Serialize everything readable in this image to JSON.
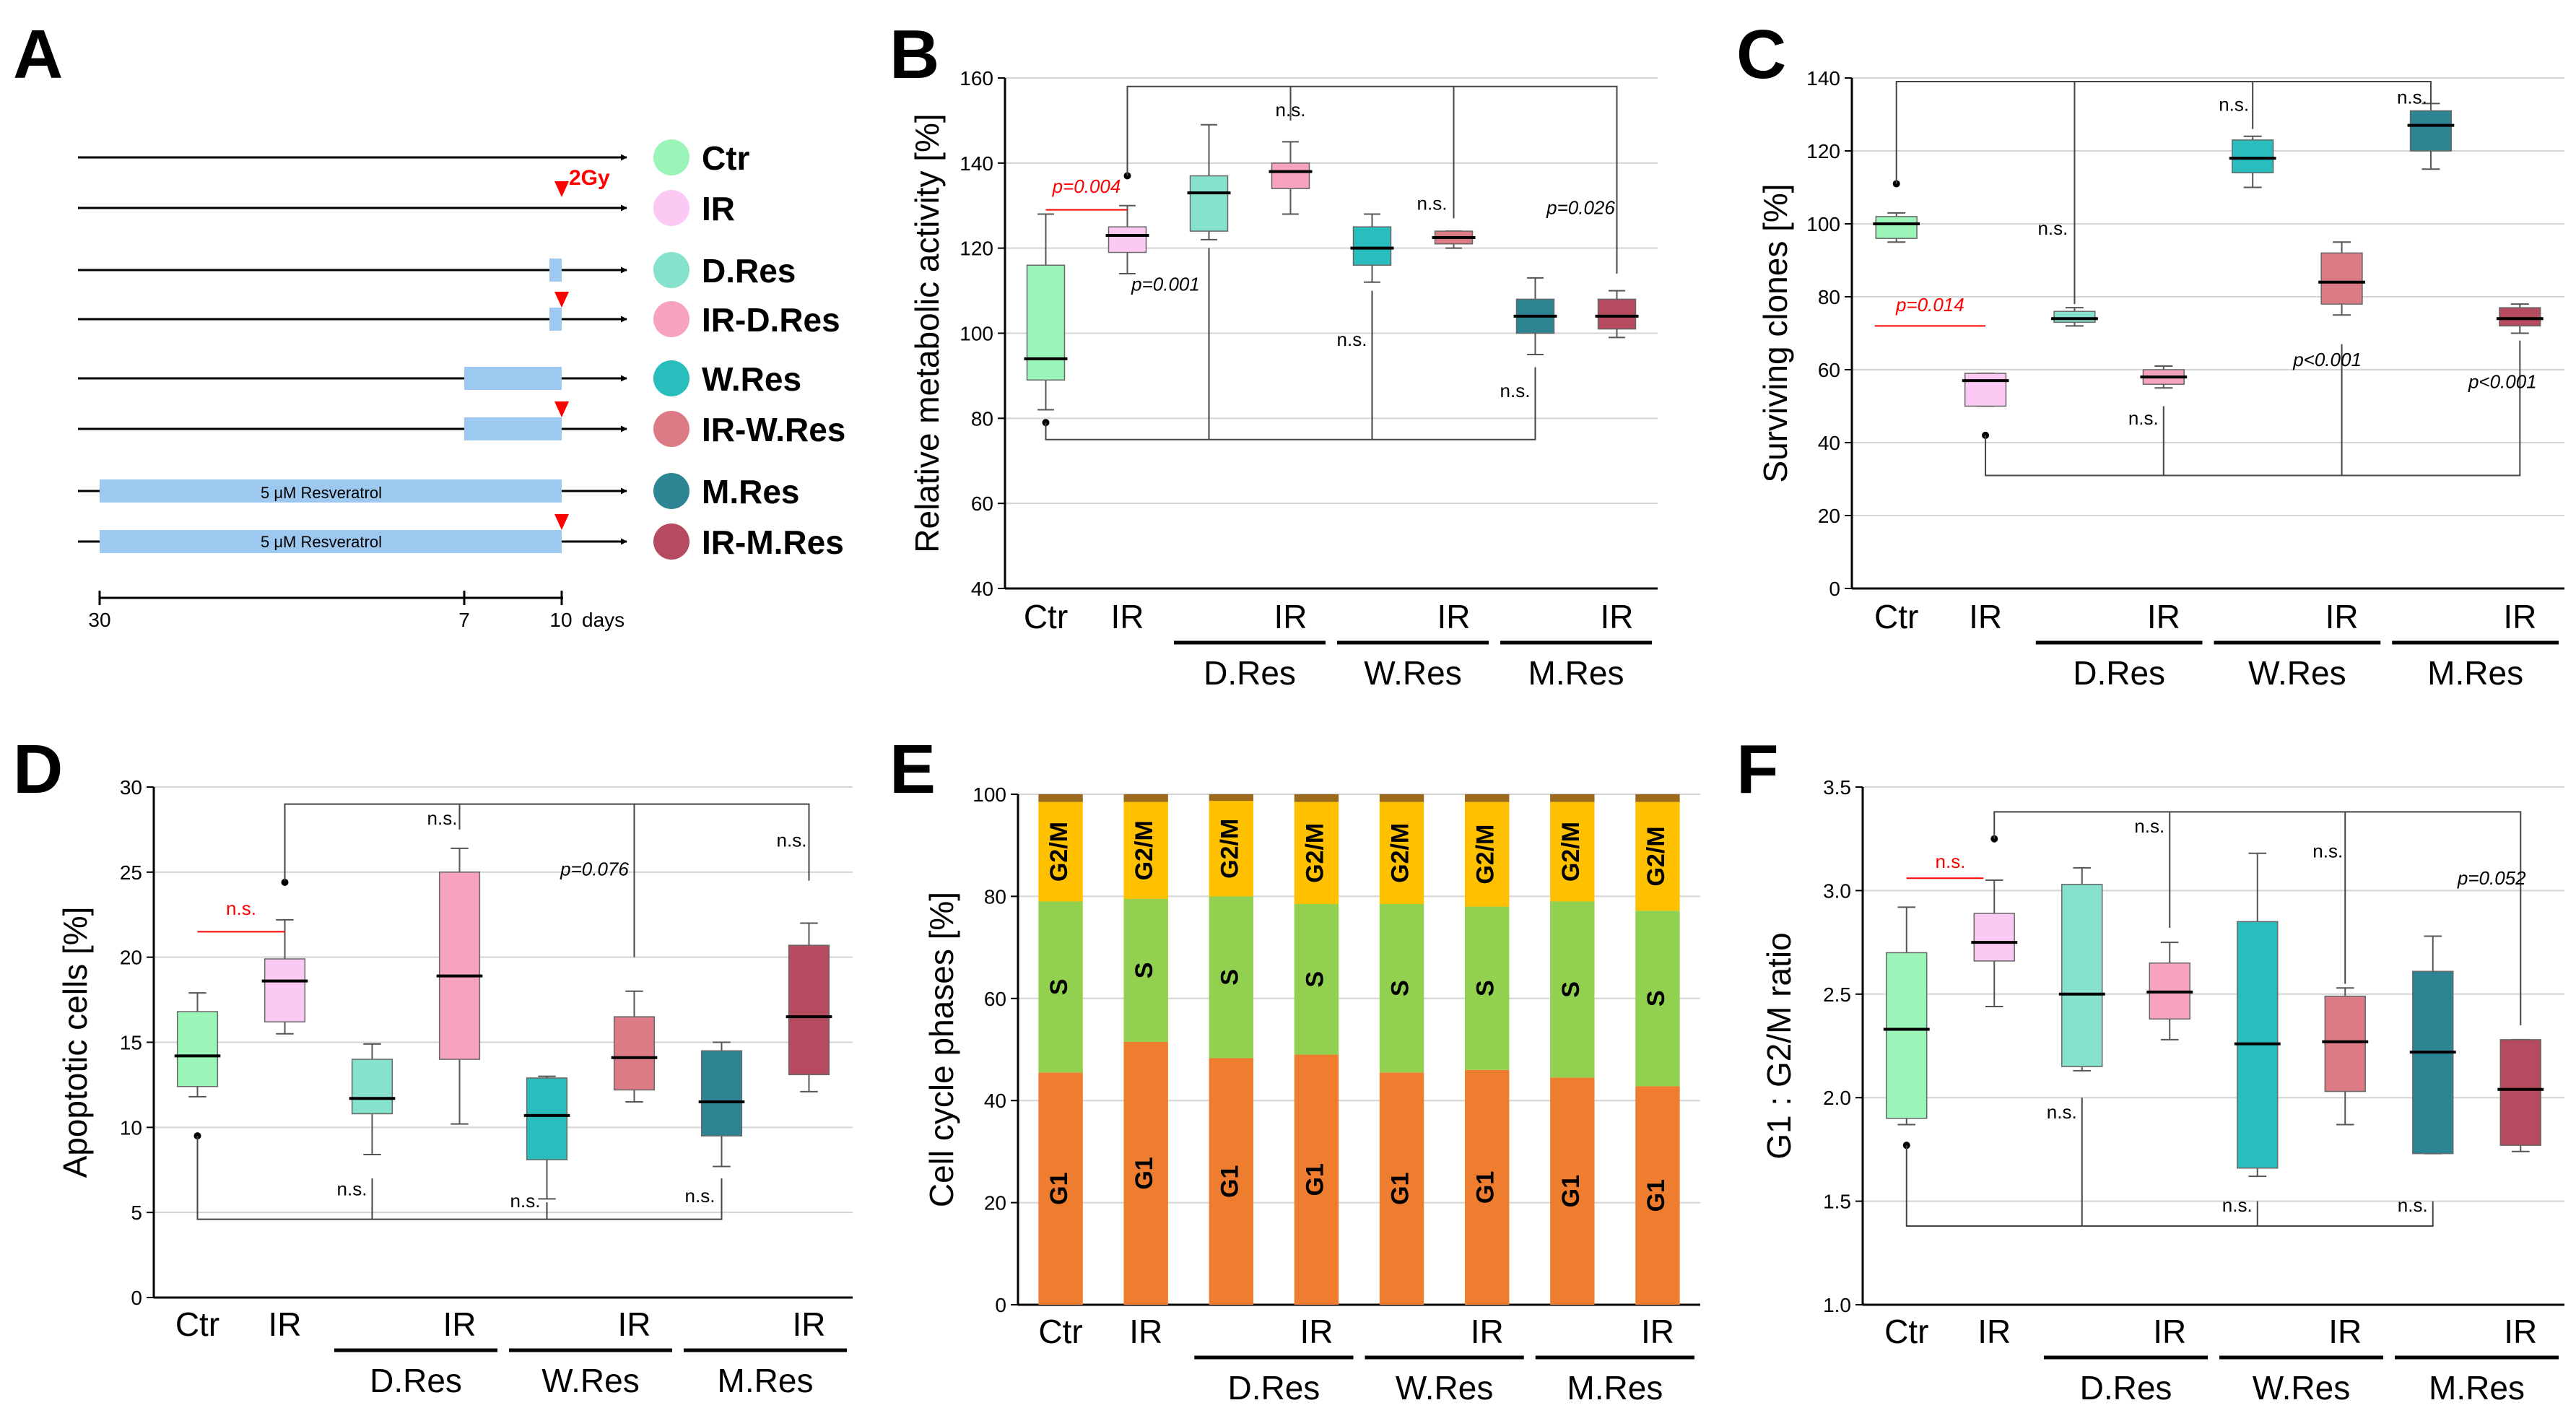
{
  "colors": {
    "Ctr": "#9cf5b8",
    "IR": "#fcc8f4",
    "D.Res": "#86e2cc",
    "IR-D.Res": "#f7a3bf",
    "W.Res": "#2abdbd",
    "IR-W.Res": "#dc7b86",
    "M.Res": "#2d8593",
    "IR-M.Res": "#b64b5f",
    "G1": "#ee7d30",
    "S": "#92d050",
    "G2M": "#ffc000",
    "top": "#9c6a1d",
    "resveratrol_bar": "#9dc9f0",
    "arrow_red": "#ff0000"
  },
  "panelA": {
    "letter": "A",
    "legend": [
      "Ctr",
      "IR",
      "D.Res",
      "IR-D.Res",
      "W.Res",
      "IR-W.Res",
      "M.Res",
      "IR-M.Res"
    ],
    "irradiation_label": "2Gy",
    "resveratrol_label": "5 μM Resveratrol",
    "time_ticks": [
      "30",
      "7",
      "10"
    ],
    "time_unit": "days"
  },
  "chart_data": [
    {
      "panel": "B",
      "type": "box",
      "ylabel": "Relative metabolic activity [%]",
      "ylim": [
        40,
        160
      ],
      "yticks": [
        40,
        60,
        80,
        100,
        120,
        140,
        160
      ],
      "xlabels": [
        "Ctr",
        "IR",
        "",
        "IR",
        "",
        "IR",
        "",
        "IR"
      ],
      "group_labels": [
        "D.Res",
        "W.Res",
        "M.Res"
      ],
      "boxes": [
        {
          "name": "Ctr",
          "whisker_low": 82,
          "q1": 89,
          "median": 94,
          "q3": 116,
          "whisker_high": 128,
          "outliers": [
            79
          ]
        },
        {
          "name": "IR",
          "whisker_low": 114,
          "q1": 119,
          "median": 123,
          "q3": 125,
          "whisker_high": 130,
          "outliers": [
            137
          ]
        },
        {
          "name": "D.Res",
          "whisker_low": 122,
          "q1": 124,
          "median": 133,
          "q3": 137,
          "whisker_high": 149,
          "outliers": []
        },
        {
          "name": "IR-D.Res",
          "whisker_low": 128,
          "q1": 134,
          "median": 138,
          "q3": 140,
          "whisker_high": 145,
          "outliers": []
        },
        {
          "name": "W.Res",
          "whisker_low": 112,
          "q1": 116,
          "median": 120,
          "q3": 125,
          "whisker_high": 128,
          "outliers": []
        },
        {
          "name": "IR-W.Res",
          "whisker_low": 120,
          "q1": 121,
          "median": 122.5,
          "q3": 124,
          "whisker_high": 124,
          "outliers": []
        },
        {
          "name": "M.Res",
          "whisker_low": 95,
          "q1": 100,
          "median": 104,
          "q3": 108,
          "whisker_high": 113,
          "outliers": []
        },
        {
          "name": "IR-M.Res",
          "whisker_low": 99,
          "q1": 101,
          "median": 104,
          "q3": 108,
          "whisker_high": 110,
          "outliers": []
        }
      ],
      "annotations": [
        "p=0.004",
        "p=0.001",
        "n.s.",
        "n.s.",
        "n.s.",
        "p=0.026",
        "n.s."
      ]
    },
    {
      "panel": "C",
      "type": "box",
      "ylabel": "Surviving clones [%]",
      "ylim": [
        0,
        140
      ],
      "yticks": [
        0,
        20,
        40,
        60,
        80,
        100,
        120,
        140
      ],
      "xlabels": [
        "Ctr",
        "IR",
        "",
        "IR",
        "",
        "IR",
        "",
        "IR"
      ],
      "group_labels": [
        "D.Res",
        "W.Res",
        "M.Res"
      ],
      "boxes": [
        {
          "name": "Ctr",
          "whisker_low": 95,
          "q1": 96,
          "median": 100,
          "q3": 102,
          "whisker_high": 103,
          "outliers": [
            111
          ]
        },
        {
          "name": "IR",
          "whisker_low": 50,
          "q1": 50,
          "median": 57,
          "q3": 59,
          "whisker_high": 59,
          "outliers": [
            42
          ]
        },
        {
          "name": "D.Res",
          "whisker_low": 72,
          "q1": 73,
          "median": 74,
          "q3": 76,
          "whisker_high": 77,
          "outliers": []
        },
        {
          "name": "IR-D.Res",
          "whisker_low": 55,
          "q1": 56,
          "median": 58,
          "q3": 60,
          "whisker_high": 61,
          "outliers": []
        },
        {
          "name": "W.Res",
          "whisker_low": 110,
          "q1": 114,
          "median": 118,
          "q3": 123,
          "whisker_high": 124,
          "outliers": []
        },
        {
          "name": "IR-W.Res",
          "whisker_low": 75,
          "q1": 78,
          "median": 84,
          "q3": 92,
          "whisker_high": 95,
          "outliers": []
        },
        {
          "name": "M.Res",
          "whisker_low": 115,
          "q1": 120,
          "median": 127,
          "q3": 131,
          "whisker_high": 133,
          "outliers": []
        },
        {
          "name": "IR-M.Res",
          "whisker_low": 70,
          "q1": 72,
          "median": 74,
          "q3": 77,
          "whisker_high": 78,
          "outliers": []
        }
      ],
      "annotations": [
        "p=0.014",
        "n.s.",
        "n.s.",
        "n.s.",
        "n.s.",
        "p<0.001",
        "p<0.001"
      ]
    },
    {
      "panel": "D",
      "type": "box",
      "ylabel": "Apoptotic cells [%]",
      "ylim": [
        0,
        30
      ],
      "yticks": [
        0,
        5,
        10,
        15,
        20,
        25,
        30
      ],
      "xlabels": [
        "Ctr",
        "IR",
        "",
        "IR",
        "",
        "IR",
        "",
        "IR"
      ],
      "group_labels": [
        "D.Res",
        "W.Res",
        "M.Res"
      ],
      "boxes": [
        {
          "name": "Ctr",
          "whisker_low": 11.8,
          "q1": 12.4,
          "median": 14.2,
          "q3": 16.8,
          "whisker_high": 17.9,
          "outliers": [
            9.5
          ]
        },
        {
          "name": "IR",
          "whisker_low": 15.5,
          "q1": 16.2,
          "median": 18.6,
          "q3": 19.9,
          "whisker_high": 22.2,
          "outliers": [
            24.4
          ]
        },
        {
          "name": "D.Res",
          "whisker_low": 8.4,
          "q1": 10.8,
          "median": 11.7,
          "q3": 14.0,
          "whisker_high": 14.9,
          "outliers": []
        },
        {
          "name": "IR-D.Res",
          "whisker_low": 10.2,
          "q1": 14.0,
          "median": 18.9,
          "q3": 25.0,
          "whisker_high": 26.4,
          "outliers": []
        },
        {
          "name": "W.Res",
          "whisker_low": 5.8,
          "q1": 8.1,
          "median": 10.7,
          "q3": 12.9,
          "whisker_high": 13.0,
          "outliers": []
        },
        {
          "name": "IR-W.Res",
          "whisker_low": 11.5,
          "q1": 12.2,
          "median": 14.1,
          "q3": 16.5,
          "whisker_high": 18.0,
          "outliers": []
        },
        {
          "name": "M.Res",
          "whisker_low": 7.7,
          "q1": 9.5,
          "median": 11.5,
          "q3": 14.5,
          "whisker_high": 15.0,
          "outliers": []
        },
        {
          "name": "IR-M.Res",
          "whisker_low": 12.1,
          "q1": 13.1,
          "median": 16.5,
          "q3": 20.7,
          "whisker_high": 22.0,
          "outliers": []
        }
      ],
      "annotations": [
        "n.s.",
        "n.s.",
        "p=0.076",
        "n.s.",
        "n.s.",
        "n.s.",
        "n.s."
      ]
    },
    {
      "panel": "E",
      "type": "bar",
      "stacked": true,
      "ylabel": "Cell cycle phases [%]",
      "ylim": [
        0,
        100
      ],
      "yticks": [
        0,
        20,
        40,
        60,
        80,
        100
      ],
      "xlabels": [
        "Ctr",
        "IR",
        "",
        "IR",
        "",
        "IR",
        "",
        "IR"
      ],
      "group_labels": [
        "D.Res",
        "W.Res",
        "M.Res"
      ],
      "series": [
        {
          "name": "G1",
          "values": [
            45.5,
            51.5,
            48.3,
            49.0,
            45.5,
            46.0,
            44.5,
            42.8
          ]
        },
        {
          "name": "S",
          "values": [
            33.5,
            28.0,
            31.7,
            29.5,
            33.0,
            32.0,
            34.5,
            34.4
          ]
        },
        {
          "name": "G2/M",
          "values": [
            19.5,
            19.0,
            18.7,
            20.0,
            20.0,
            20.5,
            19.5,
            21.3
          ]
        },
        {
          "name": "",
          "values": [
            1.5,
            1.5,
            1.3,
            1.5,
            1.5,
            1.5,
            1.5,
            1.5
          ]
        }
      ]
    },
    {
      "panel": "F",
      "type": "box",
      "ylabel": "G1 : G2/M ratio",
      "ylim": [
        1.0,
        3.5
      ],
      "yticks": [
        "1.0",
        "1.5",
        "2.0",
        "2.5",
        "3.0",
        "3.5"
      ],
      "xlabels": [
        "Ctr",
        "IR",
        "",
        "IR",
        "",
        "IR",
        "",
        "IR"
      ],
      "group_labels": [
        "D.Res",
        "W.Res",
        "M.Res"
      ],
      "boxes": [
        {
          "name": "Ctr",
          "whisker_low": 1.87,
          "q1": 1.9,
          "median": 2.33,
          "q3": 2.7,
          "whisker_high": 2.92,
          "outliers": [
            1.77
          ]
        },
        {
          "name": "IR",
          "whisker_low": 2.44,
          "q1": 2.66,
          "median": 2.75,
          "q3": 2.89,
          "whisker_high": 3.05,
          "outliers": [
            3.25
          ]
        },
        {
          "name": "D.Res",
          "whisker_low": 2.13,
          "q1": 2.15,
          "median": 2.5,
          "q3": 3.03,
          "whisker_high": 3.11,
          "outliers": []
        },
        {
          "name": "IR-D.Res",
          "whisker_low": 2.28,
          "q1": 2.38,
          "median": 2.51,
          "q3": 2.65,
          "whisker_high": 2.75,
          "outliers": []
        },
        {
          "name": "W.Res",
          "whisker_low": 1.62,
          "q1": 1.66,
          "median": 2.26,
          "q3": 2.85,
          "whisker_high": 3.18,
          "outliers": []
        },
        {
          "name": "IR-W.Res",
          "whisker_low": 1.87,
          "q1": 2.03,
          "median": 2.27,
          "q3": 2.49,
          "whisker_high": 2.53,
          "outliers": []
        },
        {
          "name": "M.Res",
          "whisker_low": 1.73,
          "q1": 1.73,
          "median": 2.22,
          "q3": 2.61,
          "whisker_high": 2.78,
          "outliers": []
        },
        {
          "name": "IR-M.Res",
          "whisker_low": 1.74,
          "q1": 1.77,
          "median": 2.04,
          "q3": 2.28,
          "whisker_high": 2.28,
          "outliers": []
        }
      ],
      "annotations": [
        "n.s.",
        "n.s.",
        "n.s.",
        "n.s.",
        "p=0.052",
        "n.s.",
        "n.s."
      ]
    }
  ]
}
